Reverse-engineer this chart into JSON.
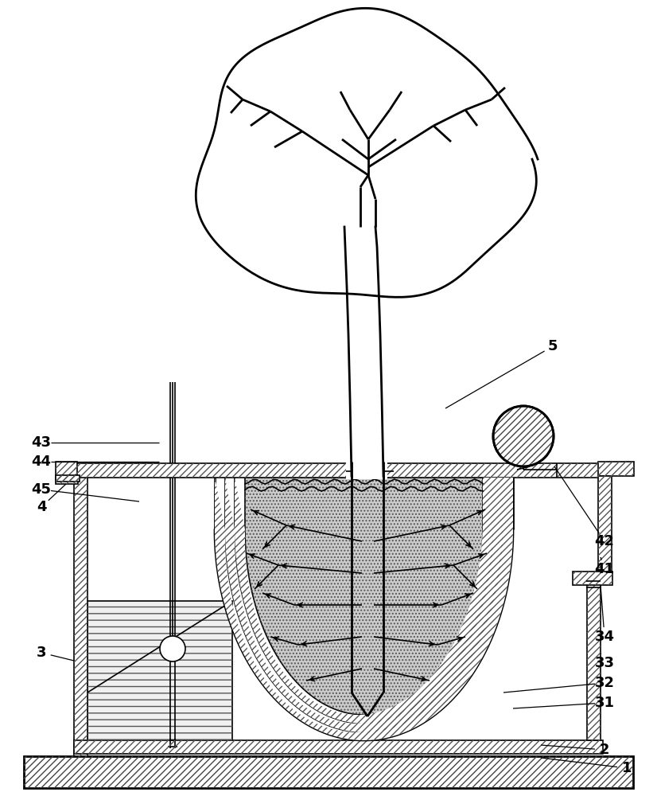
{
  "bg_color": "#ffffff",
  "line_color": "#000000",
  "figsize": [
    8.26,
    10.0
  ],
  "dpi": 100
}
